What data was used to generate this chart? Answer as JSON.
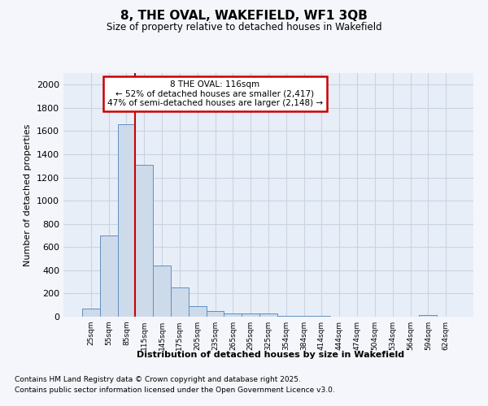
{
  "title": "8, THE OVAL, WAKEFIELD, WF1 3QB",
  "subtitle": "Size of property relative to detached houses in Wakefield",
  "xlabel": "Distribution of detached houses by size in Wakefield",
  "ylabel": "Number of detached properties",
  "footnote1": "Contains HM Land Registry data © Crown copyright and database right 2025.",
  "footnote2": "Contains public sector information licensed under the Open Government Licence v3.0.",
  "bin_labels": [
    "25sqm",
    "55sqm",
    "85sqm",
    "115sqm",
    "145sqm",
    "175sqm",
    "205sqm",
    "235sqm",
    "265sqm",
    "295sqm",
    "325sqm",
    "354sqm",
    "384sqm",
    "414sqm",
    "444sqm",
    "474sqm",
    "504sqm",
    "534sqm",
    "564sqm",
    "594sqm",
    "624sqm"
  ],
  "bar_values": [
    70,
    700,
    1660,
    1310,
    440,
    250,
    90,
    50,
    30,
    25,
    25,
    5,
    5,
    5,
    2,
    0,
    0,
    0,
    0,
    15,
    0
  ],
  "bar_color": "#cddaea",
  "bar_edge_color": "#6090c0",
  "bar_edge_width": 0.7,
  "grid_color": "#c8d4e4",
  "plot_bg_color": "#e8eef8",
  "fig_bg_color": "#f4f6fb",
  "annotation_text": "8 THE OVAL: 116sqm\n← 52% of detached houses are smaller (2,417)\n47% of semi-detached houses are larger (2,148) →",
  "annotation_box_facecolor": "#ffffff",
  "annotation_box_edgecolor": "#cc0000",
  "vline_color": "#cc0000",
  "vline_x_index": 2.5,
  "ylim": [
    0,
    2100
  ],
  "yticks": [
    0,
    200,
    400,
    600,
    800,
    1000,
    1200,
    1400,
    1600,
    1800,
    2000
  ]
}
